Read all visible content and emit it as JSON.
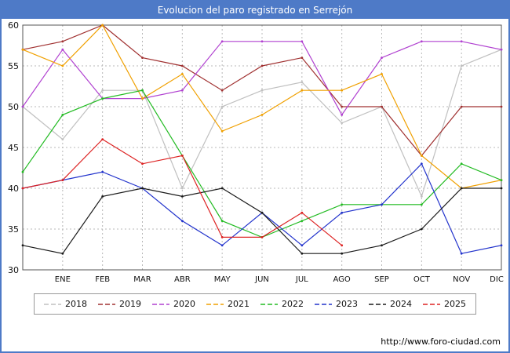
{
  "colors": {
    "frame": "#4e7ac7",
    "header_bg": "#4e7ac7",
    "grid": "#b8b8b8",
    "axis": "#555555",
    "text": "#111111"
  },
  "footer": {
    "url": "http://www.foro-ciudad.com"
  },
  "chart_data": {
    "type": "line",
    "title": "Evolucion del paro registrado en Serrejón",
    "xlabel": "",
    "ylabel": "",
    "ylim": [
      30,
      60
    ],
    "ytick_step": 5,
    "grid": true,
    "legend_position": "bottom",
    "categories": [
      "",
      "ENE",
      "FEB",
      "MAR",
      "ABR",
      "MAY",
      "JUN",
      "JUL",
      "AGO",
      "SEP",
      "OCT",
      "NOV",
      "DIC"
    ],
    "series": [
      {
        "name": "2018",
        "color": "#c0c0c0",
        "values": [
          50,
          46,
          52,
          52,
          40,
          50,
          52,
          53,
          48,
          50,
          39,
          55,
          57
        ]
      },
      {
        "name": "2019",
        "color": "#a03030",
        "values": [
          57,
          58,
          60,
          56,
          55,
          52,
          55,
          56,
          50,
          50,
          44,
          50,
          50
        ]
      },
      {
        "name": "2020",
        "color": "#b040d0",
        "values": [
          50,
          57,
          51,
          51,
          52,
          58,
          58,
          58,
          49,
          56,
          58,
          58,
          57
        ]
      },
      {
        "name": "2021",
        "color": "#f0a000",
        "values": [
          57,
          55,
          60,
          51,
          54,
          47,
          49,
          52,
          52,
          54,
          44,
          40,
          41
        ]
      },
      {
        "name": "2022",
        "color": "#22bb22",
        "values": [
          42,
          49,
          51,
          52,
          44,
          36,
          34,
          36,
          38,
          38,
          38,
          43,
          41
        ]
      },
      {
        "name": "2023",
        "color": "#2233cc",
        "values": [
          40,
          41,
          42,
          40,
          36,
          33,
          37,
          33,
          37,
          38,
          43,
          32,
          33
        ]
      },
      {
        "name": "2024",
        "color": "#1a1a1a",
        "values": [
          33,
          32,
          39,
          40,
          39,
          40,
          37,
          32,
          32,
          33,
          35,
          40,
          40
        ]
      },
      {
        "name": "2025",
        "color": "#dd2222",
        "values": [
          40,
          41,
          46,
          43,
          44,
          34,
          34,
          37,
          33,
          null,
          null,
          null,
          null
        ]
      }
    ]
  }
}
